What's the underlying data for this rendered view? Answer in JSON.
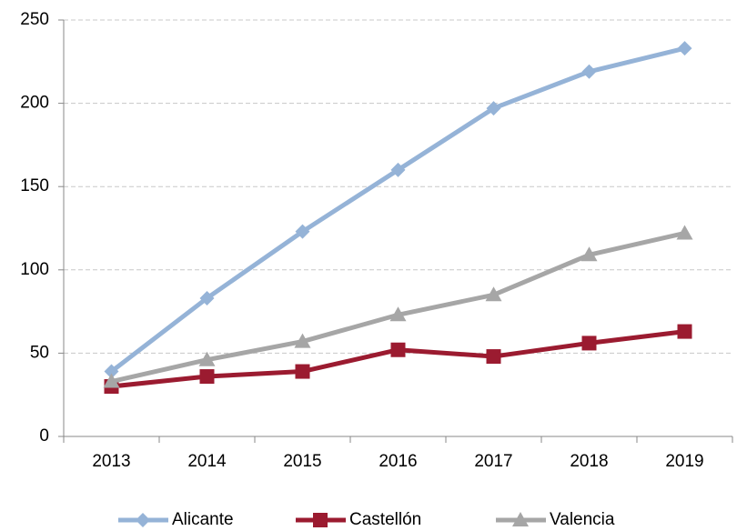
{
  "chart_data": {
    "type": "line",
    "categories": [
      "2013",
      "2014",
      "2015",
      "2016",
      "2017",
      "2018",
      "2019"
    ],
    "series": [
      {
        "name": "Alicante",
        "color": "#95b3d7",
        "marker": "diamond",
        "values": [
          39,
          83,
          123,
          160,
          197,
          219,
          233
        ]
      },
      {
        "name": "Castellón",
        "color": "#9b1b30",
        "marker": "square",
        "values": [
          30,
          36,
          39,
          52,
          48,
          56,
          63
        ]
      },
      {
        "name": "Valencia",
        "color": "#a6a6a6",
        "marker": "triangle",
        "values": [
          33,
          46,
          57,
          73,
          85,
          109,
          122
        ]
      }
    ],
    "ylim": [
      0,
      250
    ],
    "yticks": [
      0,
      50,
      100,
      150,
      200,
      250
    ],
    "grid": true,
    "legend": "bottom"
  }
}
